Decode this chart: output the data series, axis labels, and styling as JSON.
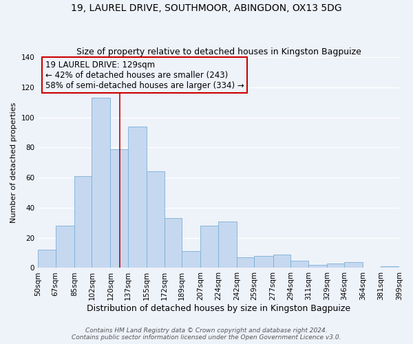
{
  "title": "19, LAUREL DRIVE, SOUTHMOOR, ABINGDON, OX13 5DG",
  "subtitle": "Size of property relative to detached houses in Kingston Bagpuize",
  "xlabel": "Distribution of detached houses by size in Kingston Bagpuize",
  "ylabel": "Number of detached properties",
  "bin_edges": [
    50,
    67,
    85,
    102,
    120,
    137,
    155,
    172,
    189,
    207,
    224,
    242,
    259,
    277,
    294,
    311,
    329,
    346,
    364,
    381,
    399
  ],
  "bar_heights": [
    12,
    28,
    61,
    113,
    79,
    94,
    64,
    33,
    11,
    28,
    31,
    7,
    8,
    9,
    5,
    2,
    3,
    4,
    0,
    1
  ],
  "bar_color": "#c5d8f0",
  "bar_edgecolor": "#7bafd4",
  "vline_x": 129,
  "vline_color": "#cc0000",
  "ylim": [
    0,
    140
  ],
  "yticks": [
    0,
    20,
    40,
    60,
    80,
    100,
    120,
    140
  ],
  "annotation_title": "19 LAUREL DRIVE: 129sqm",
  "annotation_line1": "← 42% of detached houses are smaller (243)",
  "annotation_line2": "58% of semi-detached houses are larger (334) →",
  "annotation_box_color": "#cc0000",
  "footer_line1": "Contains HM Land Registry data © Crown copyright and database right 2024.",
  "footer_line2": "Contains public sector information licensed under the Open Government Licence v3.0.",
  "bg_color": "#eef2f9",
  "title_fontsize": 10,
  "subtitle_fontsize": 9,
  "xlabel_fontsize": 9,
  "ylabel_fontsize": 8,
  "tick_label_fontsize": 7.5,
  "annotation_fontsize": 8.5,
  "footer_fontsize": 6.5
}
